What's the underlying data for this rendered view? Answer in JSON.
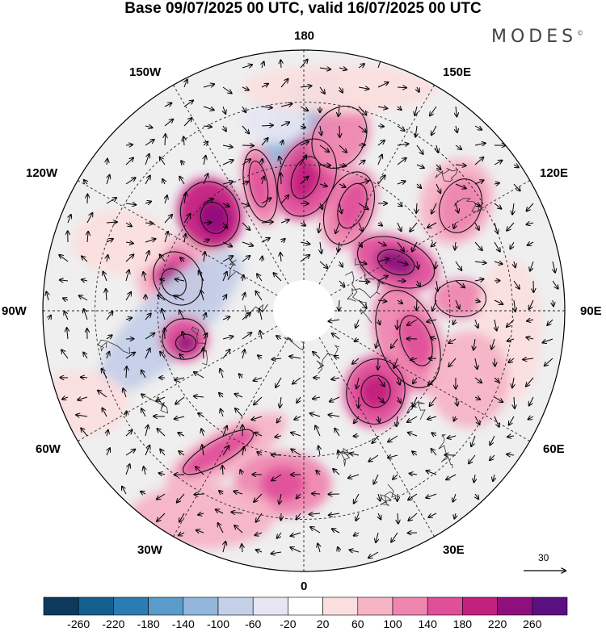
{
  "title": "Base 09/07/2025 00 UTC, valid 16/07/2025 00 UTC",
  "brand": "MODES",
  "brand_mark": "©",
  "longitude_labels": {
    "lon_180": "180",
    "lon_150e": "150E",
    "lon_120e": "120E",
    "lon_90e": "90E",
    "lon_60e": "60E",
    "lon_30e": "30E",
    "lon_0": "0",
    "lon_30w": "30W",
    "lon_60w": "60W",
    "lon_90w": "90W",
    "lon_120w": "120W",
    "lon_150w": "150W"
  },
  "reference_vector": {
    "label": "30"
  },
  "colorbar": {
    "ticks": [
      "-260",
      "-220",
      "-180",
      "-140",
      "-100",
      "-60",
      "-20",
      "20",
      "60",
      "100",
      "140",
      "180",
      "220",
      "260"
    ],
    "colors": [
      "#0d3a5c",
      "#155f8f",
      "#2b7cb3",
      "#5a9bc9",
      "#93b7dc",
      "#c4cfe8",
      "#e6e6f2",
      "#ffffff",
      "#fbdede",
      "#f6b4c6",
      "#ee86b0",
      "#e0509a",
      "#c4207e",
      "#8f0f7c",
      "#5a1080"
    ]
  },
  "colors": {
    "background_fill": "#efefef",
    "grid": "#222222",
    "coast": "#333333"
  }
}
